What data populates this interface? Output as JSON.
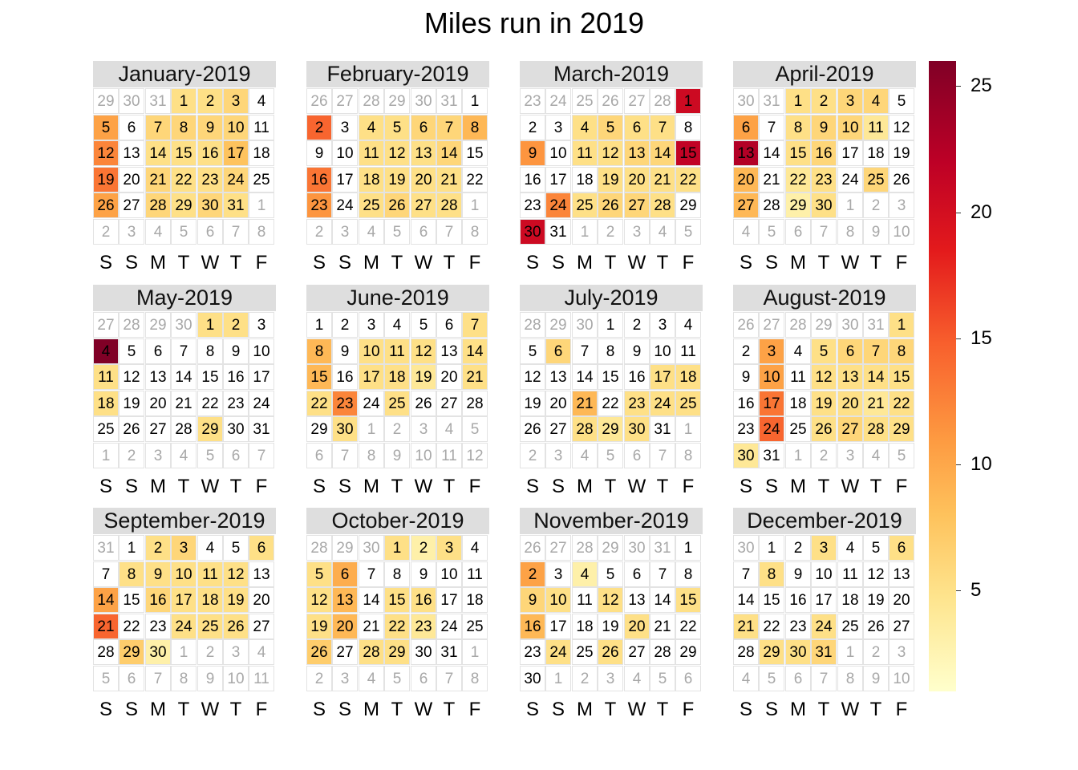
{
  "chart_data": {
    "type": "heatmap",
    "title": "Miles run in 2019",
    "year": 2019,
    "weekday_labels": [
      "S",
      "S",
      "M",
      "T",
      "W",
      "T",
      "F"
    ],
    "colorbar": {
      "ticks": [
        5,
        10,
        15,
        20,
        25
      ],
      "range": [
        1,
        26
      ],
      "colors": [
        "#ffffcc",
        "#fee48d",
        "#fec25c",
        "#fd9a41",
        "#f8602d",
        "#e31a1c",
        "#bd0026",
        "#800026"
      ]
    },
    "months": [
      {
        "label": "January-2019",
        "days": 31,
        "first_col": 3,
        "values": {
          "1": 5,
          "2": 5,
          "3": 6,
          "5": 11,
          "7": 6,
          "8": 6,
          "9": 6,
          "10": 6,
          "12": 13,
          "14": 5,
          "15": 5,
          "16": 5,
          "17": 8,
          "19": 14,
          "21": 6,
          "22": 5,
          "23": 5,
          "24": 6,
          "26": 11,
          "28": 6,
          "29": 5,
          "30": 6,
          "31": 5
        }
      },
      {
        "label": "February-2019",
        "days": 28,
        "first_col": 6,
        "values": {
          "2": 15,
          "4": 5,
          "5": 5,
          "6": 6,
          "7": 6,
          "8": 9,
          "11": 5,
          "12": 5,
          "13": 5,
          "14": 6,
          "16": 14,
          "18": 5,
          "19": 5,
          "20": 5,
          "21": 5,
          "23": 12,
          "25": 5,
          "26": 6,
          "27": 5,
          "28": 5
        }
      },
      {
        "label": "March-2019",
        "days": 31,
        "first_col": 6,
        "values": {
          "1": 21,
          "4": 5,
          "5": 6,
          "6": 5,
          "7": 5,
          "9": 12,
          "11": 5,
          "12": 5,
          "13": 6,
          "14": 6,
          "15": 22,
          "19": 5,
          "20": 5,
          "21": 5,
          "22": 5,
          "24": 13,
          "25": 5,
          "26": 6,
          "27": 6,
          "28": 5,
          "30": 21
        }
      },
      {
        "label": "April-2019",
        "days": 30,
        "first_col": 2,
        "values": {
          "1": 5,
          "2": 5,
          "3": 6,
          "4": 6,
          "6": 11,
          "8": 5,
          "9": 6,
          "10": 6,
          "11": 4,
          "13": 23,
          "15": 5,
          "16": 6,
          "20": 9,
          "22": 4,
          "23": 5,
          "25": 6,
          "27": 9,
          "29": 3,
          "30": 5
        }
      },
      {
        "label": "May-2019",
        "days": 31,
        "first_col": 4,
        "values": {
          "1": 5,
          "2": 5,
          "4": 26,
          "11": 5,
          "18": 5,
          "29": 5
        }
      },
      {
        "label": "June-2019",
        "days": 30,
        "first_col": 0,
        "values": {
          "7": 5,
          "8": 9,
          "10": 5,
          "11": 5,
          "12": 5,
          "14": 5,
          "15": 9,
          "17": 5,
          "18": 5,
          "19": 4,
          "21": 5,
          "22": 5,
          "23": 13,
          "25": 5,
          "30": 5
        }
      },
      {
        "label": "July-2019",
        "days": 31,
        "first_col": 3,
        "values": {
          "6": 6,
          "17": 5,
          "18": 5,
          "21": 9,
          "23": 5,
          "24": 5,
          "25": 5,
          "28": 5,
          "29": 4,
          "30": 5
        }
      },
      {
        "label": "August-2019",
        "days": 31,
        "first_col": 6,
        "values": {
          "1": 5,
          "3": 11,
          "5": 5,
          "6": 6,
          "7": 6,
          "8": 6,
          "10": 11,
          "12": 5,
          "13": 5,
          "14": 5,
          "15": 5,
          "17": 14,
          "19": 5,
          "20": 5,
          "21": 4,
          "22": 5,
          "24": 15,
          "26": 5,
          "27": 6,
          "28": 5,
          "29": 5,
          "30": 4
        }
      },
      {
        "label": "September-2019",
        "days": 30,
        "first_col": 1,
        "values": {
          "2": 5,
          "3": 6,
          "6": 5,
          "8": 5,
          "9": 5,
          "10": 5,
          "11": 5,
          "12": 5,
          "14": 11,
          "16": 6,
          "17": 5,
          "18": 5,
          "19": 5,
          "21": 15,
          "24": 5,
          "25": 5,
          "26": 5,
          "29": 7,
          "30": 3
        }
      },
      {
        "label": "October-2019",
        "days": 31,
        "first_col": 3,
        "values": {
          "1": 5,
          "2": 3,
          "3": 5,
          "5": 5,
          "6": 10,
          "12": 5,
          "13": 9,
          "15": 5,
          "16": 5,
          "19": 5,
          "20": 9,
          "22": 5,
          "23": 4,
          "26": 7,
          "28": 5,
          "29": 5
        }
      },
      {
        "label": "November-2019",
        "days": 30,
        "first_col": 6,
        "values": {
          "2": 11,
          "4": 3,
          "9": 6,
          "10": 5,
          "12": 5,
          "15": 5,
          "16": 9,
          "20": 5,
          "24": 5,
          "26": 5
        }
      },
      {
        "label": "December-2019",
        "days": 31,
        "first_col": 1,
        "values": {
          "3": 5,
          "6": 5,
          "8": 5,
          "21": 5,
          "24": 5,
          "29": 5,
          "30": 5,
          "31": 6
        }
      }
    ]
  }
}
